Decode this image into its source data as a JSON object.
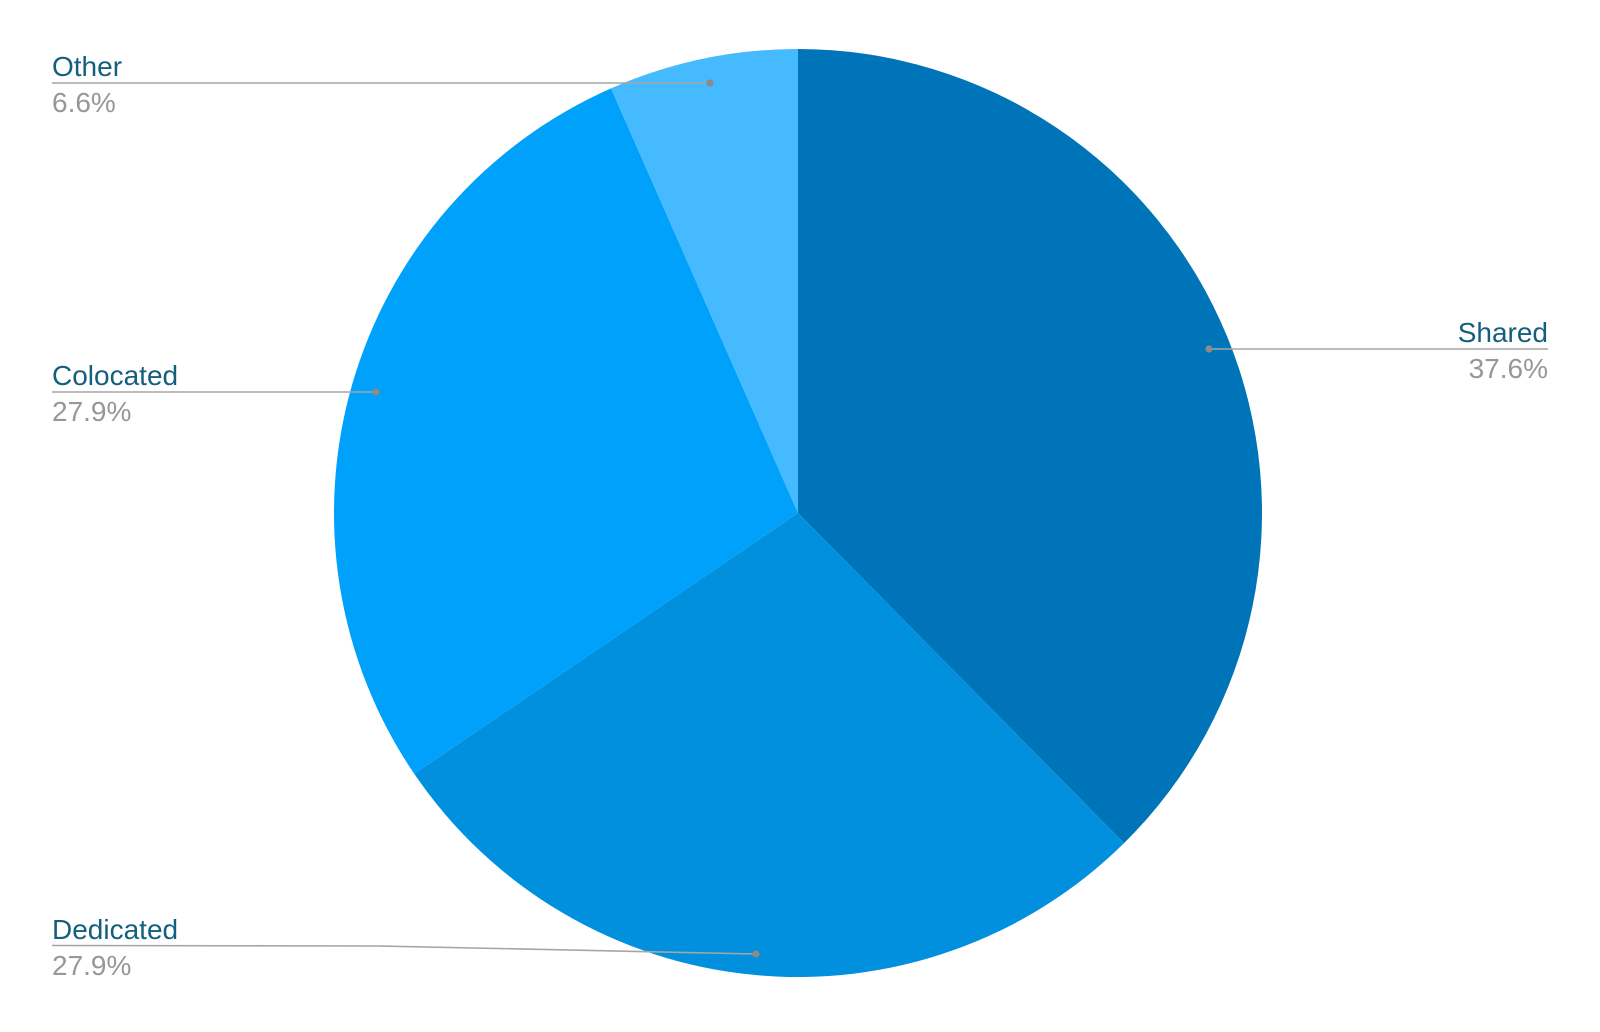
{
  "chart_data": {
    "type": "pie",
    "title": "",
    "labels": [
      "Shared",
      "Dedicated",
      "Colocated",
      "Other"
    ],
    "values": [
      37.6,
      27.9,
      27.9,
      6.6
    ],
    "percent_labels": [
      "37.6%",
      "27.9%",
      "27.9%",
      "6.6%"
    ],
    "colors": [
      "#0074B8",
      "#0090DE",
      "#00A1FA",
      "#45BAFE"
    ],
    "start_angle": "12 o'clock",
    "direction": "clockwise",
    "legend": "none",
    "background": "#FFFFFF",
    "label_name_color": "#155F7E",
    "label_percent_color": "#979797",
    "leader_line_color": "#A6A6A6",
    "leader_dot_color": "#8E8A85"
  }
}
